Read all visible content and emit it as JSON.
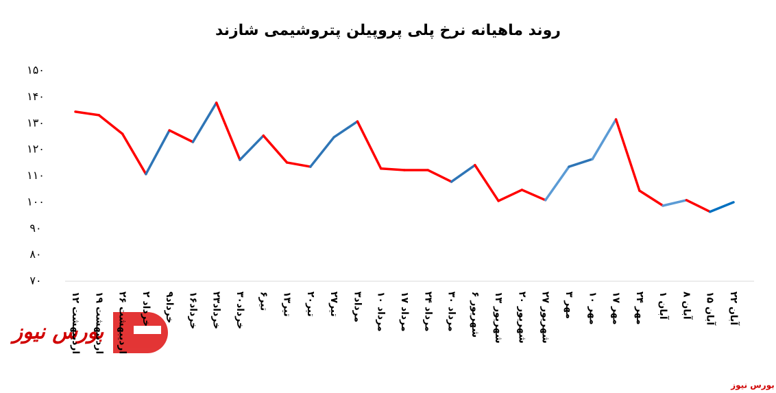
{
  "chart_data": {
    "type": "line",
    "title": "روند ماهیانه نرخ پلی پروپیلن پتروشیمی شازند",
    "categories": [
      "۱۲ اردیبهشت",
      "۱۹ اردیبهشت",
      "۲۶ اردیبهشت",
      "۲ خرداد",
      "۹خرداد",
      "۱۶خرداد",
      "۲۳خرداد",
      "۳۰خرداد",
      "۶تیر",
      "۱۳تیر",
      "۲۰تیر",
      "۲۷تیر",
      "۳مرداد",
      "۱۰ مرداد",
      "۱۷ مرداد",
      "۲۴ مرداد",
      "۳۰ مرداد",
      "۶ شهریور",
      "۱۳ شهریور",
      "۲۰ شهریور",
      "۲۷ شهریور",
      "۳ مهر",
      "۱۰ مهر",
      "۱۷ مهر",
      "۲۴ مهر",
      "۱ آبان",
      "۸ آبان",
      "۱۵ آبان",
      "۲۲ آبان"
    ],
    "values": [
      134.4,
      133.1,
      126.0,
      110.7,
      127.3,
      122.9,
      137.8,
      116.1,
      125.3,
      115.1,
      113.5,
      124.7,
      130.7,
      112.8,
      112.2,
      112.2,
      107.8,
      114.1,
      100.5,
      104.7,
      100.8,
      113.5,
      116.4,
      131.5,
      104.4,
      98.7,
      100.8,
      96.4,
      100.0
    ],
    "segment_colors": [
      "#ff0000",
      "#ff0000",
      "#ff0000",
      "#2e75b6",
      "#ff0000",
      "#2e75b6",
      "#ff0000",
      "#2e75b6",
      "#ff0000",
      "#ff0000",
      "#2e75b6",
      "#2e75b6",
      "#ff0000",
      "#ff0000",
      "#ff0000",
      "#ff0000",
      "#2e75b6",
      "#ff0000",
      "#ff0000",
      "#ff0000",
      "#5b9bd5",
      "#2e75b6",
      "#5b9bd5",
      "#ff0000",
      "#ff0000",
      "#5b9bd5",
      "#ff0000",
      "#0070c0"
    ],
    "ylim": [
      70,
      150
    ],
    "yticks": [
      {
        "value": 70,
        "label": "۷۰"
      },
      {
        "value": 80,
        "label": "۸۰"
      },
      {
        "value": 90,
        "label": "۹۰"
      },
      {
        "value": 100,
        "label": "۱۰۰"
      },
      {
        "value": 110,
        "label": "۱۱۰"
      },
      {
        "value": 120,
        "label": "۱۲۰"
      },
      {
        "value": 130,
        "label": "۱۳۰"
      },
      {
        "value": 140,
        "label": "۱۴۰"
      },
      {
        "value": 150,
        "label": "۱۵۰"
      }
    ],
    "grid": false,
    "watermark": "بورس نیوز",
    "source": "بورس نیوز"
  }
}
